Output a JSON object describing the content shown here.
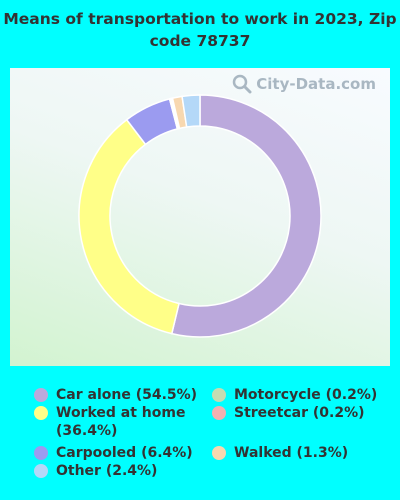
{
  "title": "Means of transportation to work in 2023, Zip code 78737",
  "watermark": "City-Data.com",
  "chart_data": {
    "type": "pie",
    "donut": true,
    "title": "Means of transportation to work in 2023, Zip code 78737",
    "series": [
      {
        "name": "Car alone (54.5%)",
        "value": 54.5,
        "color": "#bba9dc"
      },
      {
        "name": "Worked at home (36.4%)",
        "value": 36.4,
        "color": "#ffff88"
      },
      {
        "name": "Carpooled (6.4%)",
        "value": 6.4,
        "color": "#9b9bf0"
      },
      {
        "name": "Motorcycle (0.2%)",
        "value": 0.2,
        "color": "#c6dcb2"
      },
      {
        "name": "Streetcar (0.2%)",
        "value": 0.2,
        "color": "#f2b1b1"
      },
      {
        "name": "Walked (1.3%)",
        "value": 1.3,
        "color": "#f8d8b0"
      },
      {
        "name": "Other (2.4%)",
        "value": 2.4,
        "color": "#b4d8f8"
      }
    ],
    "legend": [
      {
        "label": "Car alone (54.5%)",
        "color": "#bba9dc"
      },
      {
        "label": "Worked at home (36.4%)",
        "color": "#ffff88"
      },
      {
        "label": "Carpooled (6.4%)",
        "color": "#9b9bf0"
      },
      {
        "label": "Other (2.4%)",
        "color": "#b4d8f8"
      },
      {
        "label": "Motorcycle (0.2%)",
        "color": "#c6dcb2"
      },
      {
        "label": "Streetcar (0.2%)",
        "color": "#f2b1b1"
      },
      {
        "label": "Walked (1.3%)",
        "color": "#f8d8b0"
      }
    ],
    "legend_placement": "bottom"
  }
}
